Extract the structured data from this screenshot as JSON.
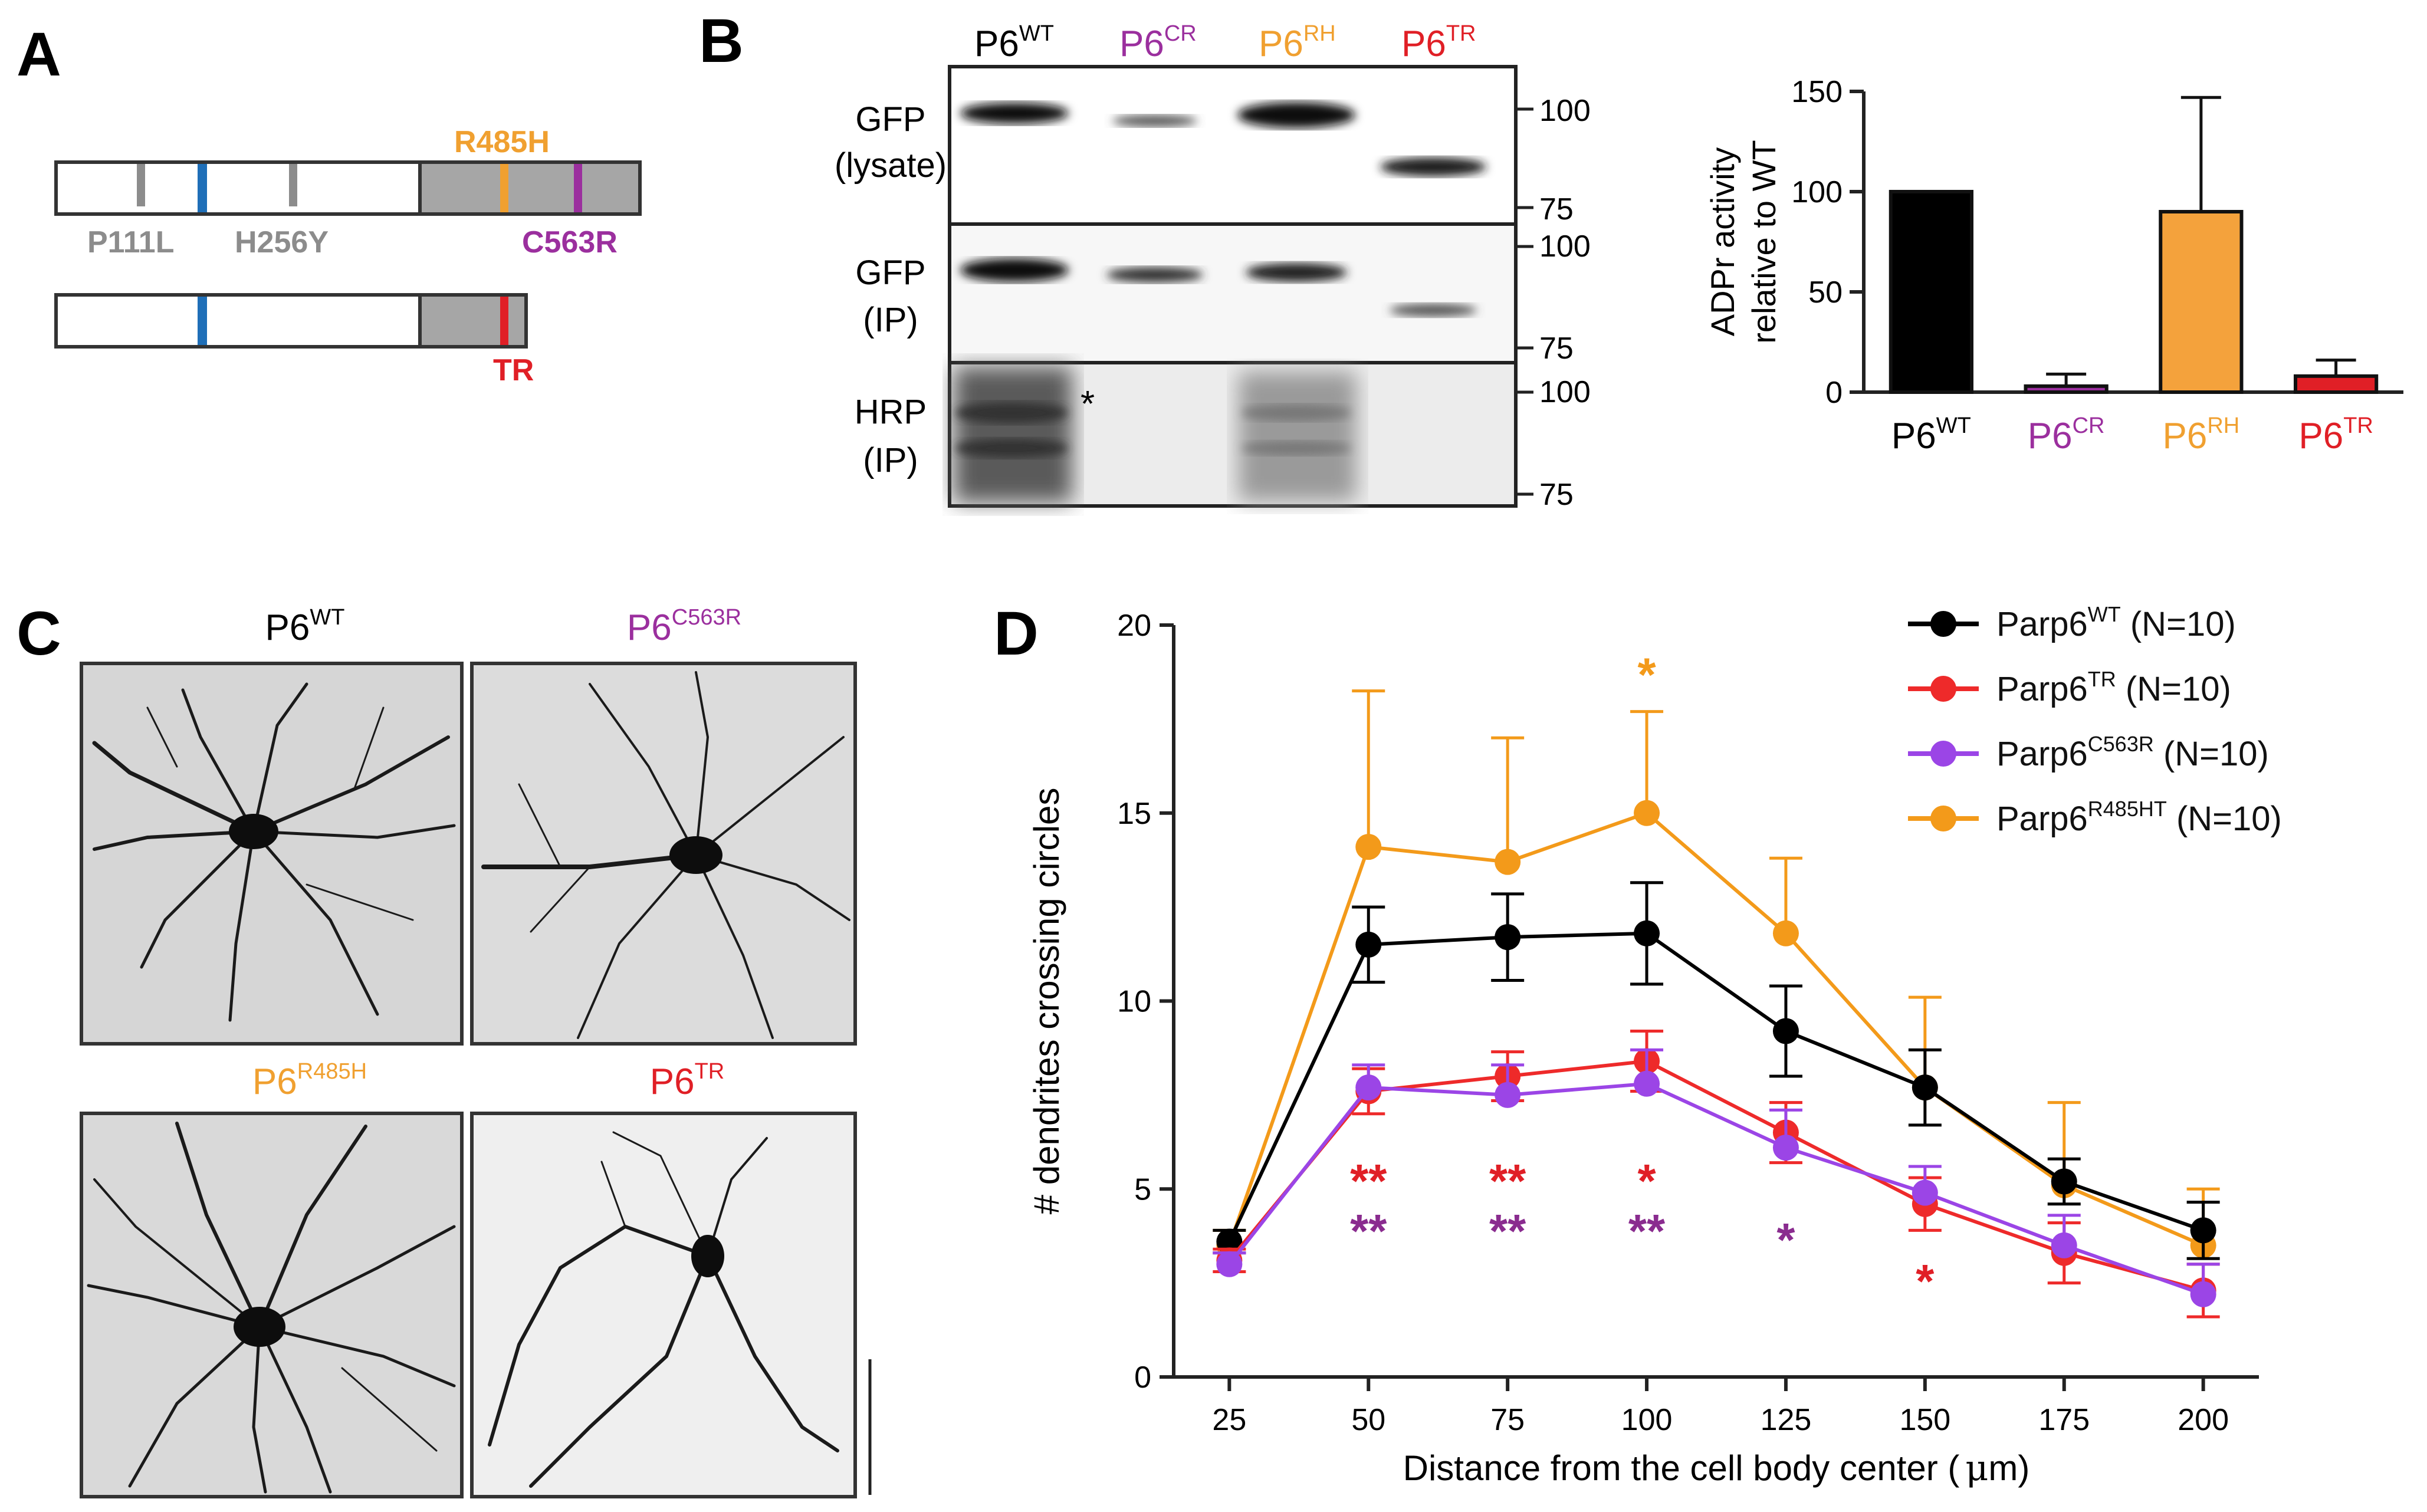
{
  "panels": {
    "a": "A",
    "b": "B",
    "c": "C",
    "d": "D"
  },
  "panel_a": {
    "mutations": [
      "P111L",
      "H256Y",
      "R485H",
      "C563R"
    ],
    "truncation_label": "TR"
  },
  "panel_b_blot": {
    "lanes": [
      {
        "base": "P6",
        "sup": "WT",
        "color": "#000000"
      },
      {
        "base": "P6",
        "sup": "CR",
        "color": "#9b2f9e"
      },
      {
        "base": "P6",
        "sup": "RH",
        "color": "#f0a030"
      },
      {
        "base": "P6",
        "sup": "TR",
        "color": "#e01f26"
      }
    ],
    "rows": [
      {
        "line1": "GFP",
        "line2": "(lysate)",
        "markers": [
          "100",
          "75"
        ]
      },
      {
        "line1": "GFP",
        "line2": "(IP)",
        "markers": [
          "100",
          "75"
        ]
      },
      {
        "line1": "HRP",
        "line2": "(IP)",
        "markers": [
          "100",
          "75"
        ]
      }
    ],
    "asterisk": "*"
  },
  "panel_c": {
    "images": [
      {
        "base": "P6",
        "sup": "WT",
        "color": "#000000"
      },
      {
        "base": "P6",
        "sup": "C563R",
        "color": "#9b2f9e"
      },
      {
        "base": "P6",
        "sup": "R485H",
        "color": "#f0a030"
      },
      {
        "base": "P6",
        "sup": "TR",
        "color": "#e01f26"
      }
    ]
  },
  "chart_data": [
    {
      "type": "bar",
      "ylabel_line1": "ADPr  activity",
      "ylabel_line2": "relative  to WT",
      "ylim": [
        0,
        150
      ],
      "yticks": [
        0,
        50,
        100,
        150
      ],
      "categories": [
        {
          "base": "P6",
          "sup": "WT",
          "color": "#000000"
        },
        {
          "base": "P6",
          "sup": "CR",
          "color": "#9b2f9e"
        },
        {
          "base": "P6",
          "sup": "RH",
          "color": "#f0a030"
        },
        {
          "base": "P6",
          "sup": "TR",
          "color": "#e01f26"
        }
      ],
      "values": [
        100,
        3,
        90,
        8
      ],
      "errors": [
        0,
        6,
        57,
        8
      ],
      "bar_colors": [
        "#000000",
        "#9b2f9e",
        "#f4a23c",
        "#e01f26"
      ]
    },
    {
      "type": "line",
      "xlabel_pre": "Distance from the cell body center (",
      "xlabel_mu": "μ",
      "xlabel_post": "m)",
      "ylabel": "# dendrites crossing circles",
      "x": [
        25,
        50,
        75,
        100,
        125,
        150,
        175,
        200
      ],
      "xlim": [
        15,
        210
      ],
      "ylim": [
        0,
        20
      ],
      "yticks": [
        0,
        5,
        10,
        15,
        20
      ],
      "series": [
        {
          "name_base": "Parp6",
          "name_sup": "WT",
          "suffix": " (N=10)",
          "color": "#000000",
          "values": [
            3.6,
            11.5,
            11.7,
            11.8,
            9.2,
            7.7,
            5.2,
            3.9
          ],
          "errors": [
            0.3,
            1.0,
            1.15,
            1.35,
            1.2,
            1.0,
            0.6,
            0.75
          ]
        },
        {
          "name_base": "Parp6",
          "name_sup": "TR",
          "suffix": " (N=10)",
          "color": "#ee2a2a",
          "values": [
            3.1,
            7.6,
            8.0,
            8.4,
            6.5,
            4.6,
            3.3,
            2.3
          ],
          "errors": [
            0.3,
            0.6,
            0.65,
            0.8,
            0.8,
            0.7,
            0.8,
            0.7
          ]
        },
        {
          "name_base": "Parp6",
          "name_sup": "C563R",
          "suffix": " (N=10)",
          "color": "#9b45e6",
          "values": [
            3.0,
            7.7,
            7.5,
            7.8,
            6.1,
            4.9,
            3.5,
            2.2
          ],
          "errors": [
            0.3,
            0.6,
            0.8,
            0.9,
            1.0,
            0.7,
            0.8,
            0.8
          ]
        },
        {
          "name_base": "Parp6",
          "name_sup": "R485HT",
          "suffix": " (N=10)",
          "color": "#f39a1a",
          "values": [
            3.5,
            14.1,
            13.7,
            15.0,
            11.8,
            7.7,
            5.1,
            3.5
          ],
          "errors": [
            0.4,
            4.15,
            3.3,
            2.7,
            2.0,
            2.4,
            2.2,
            1.5
          ]
        }
      ],
      "significance": [
        {
          "x": 50,
          "stars": [
            "**",
            "**"
          ],
          "colors": [
            "#e01f26",
            "#8a2c8f"
          ]
        },
        {
          "x": 75,
          "stars": [
            "**",
            "**"
          ],
          "colors": [
            "#e01f26",
            "#8a2c8f"
          ]
        },
        {
          "x": 100,
          "stars": [
            "*",
            "**"
          ],
          "colors": [
            "#e01f26",
            "#8a2c8f"
          ]
        },
        {
          "x": 100,
          "stars": [
            "*"
          ],
          "colors": [
            "#f39a1a"
          ],
          "position": "above"
        },
        {
          "x": 125,
          "stars": [
            "*"
          ],
          "colors": [
            "#8a2c8f"
          ]
        },
        {
          "x": 150,
          "stars": [
            "*"
          ],
          "colors": [
            "#e01f26"
          ]
        }
      ]
    }
  ]
}
